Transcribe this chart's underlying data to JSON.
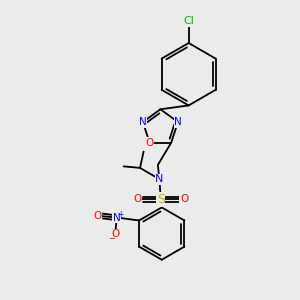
{
  "background_color": "#ebebeb",
  "figsize": [
    3.0,
    3.0
  ],
  "dpi": 100,
  "bond_lw": 1.3,
  "font_size_atom": 7.5,
  "font_size_cl": 8.0,
  "font_size_s": 9.0,
  "colors": {
    "C": "#000000",
    "N": "#0000ff",
    "O": "#ff0000",
    "S": "#ccaa00",
    "Cl": "#00bb00"
  }
}
